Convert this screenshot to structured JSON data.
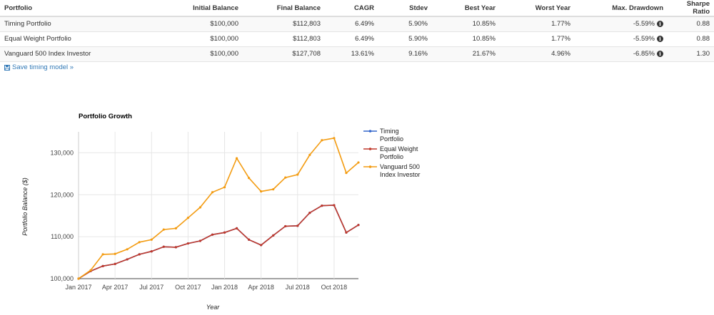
{
  "table": {
    "headers": [
      "Portfolio",
      "Initial Balance",
      "Final Balance",
      "CAGR",
      "Stdev",
      "Best Year",
      "Worst Year",
      "Max. Drawdown",
      "Sharpe Ratio"
    ],
    "rows": [
      {
        "portfolio": "Timing Portfolio",
        "initial": "$100,000",
        "final": "$112,803",
        "cagr": "6.49%",
        "stdev": "5.90%",
        "best": "10.85%",
        "worst": "1.77%",
        "drawdown": "-5.59%",
        "sharpe": "0.88"
      },
      {
        "portfolio": "Equal Weight Portfolio",
        "initial": "$100,000",
        "final": "$112,803",
        "cagr": "6.49%",
        "stdev": "5.90%",
        "best": "10.85%",
        "worst": "1.77%",
        "drawdown": "-5.59%",
        "sharpe": "0.88"
      },
      {
        "portfolio": "Vanguard 500 Index Investor",
        "initial": "$100,000",
        "final": "$127,708",
        "cagr": "13.61%",
        "stdev": "9.16%",
        "best": "21.67%",
        "worst": "4.96%",
        "drawdown": "-6.85%",
        "sharpe": "1.30"
      }
    ],
    "info_icon": "info-circle-icon"
  },
  "save_link": {
    "label": "Save timing model »",
    "icon": "floppy-disk-icon"
  },
  "chart_data": {
    "type": "line",
    "title": "Portfolio Growth",
    "xlabel": "Year",
    "ylabel": "Portfolio Balance ($)",
    "ylim": [
      100000,
      135000
    ],
    "y_ticks": [
      100000,
      110000,
      120000,
      130000
    ],
    "y_tick_labels": [
      "100,000",
      "110,000",
      "120,000",
      "130,000"
    ],
    "x_tick_labels": [
      "Jan 2017",
      "Apr 2017",
      "Jul 2017",
      "Oct 2017",
      "Jan 2018",
      "Apr 2018",
      "Jul 2018",
      "Oct 2018"
    ],
    "x": [
      "Jan 2017",
      "Feb 2017",
      "Mar 2017",
      "Apr 2017",
      "May 2017",
      "Jun 2017",
      "Jul 2017",
      "Aug 2017",
      "Sep 2017",
      "Oct 2017",
      "Nov 2017",
      "Dec 2017",
      "Jan 2018",
      "Feb 2018",
      "Mar 2018",
      "Apr 2018",
      "May 2018",
      "Jun 2018",
      "Jul 2018",
      "Aug 2018",
      "Sep 2018",
      "Oct 2018",
      "Nov 2018",
      "Dec 2018"
    ],
    "grid": true,
    "legend_position": "right",
    "series": [
      {
        "name": "Timing Portfolio",
        "color": "#3366cc",
        "values": [
          100000,
          101800,
          103000,
          103500,
          104600,
          105800,
          106500,
          107600,
          107500,
          108400,
          109000,
          110500,
          111000,
          112000,
          109300,
          108000,
          110300,
          112500,
          112600,
          115700,
          117400,
          117500,
          111000,
          112800
        ]
      },
      {
        "name": "Equal Weight Portfolio",
        "color": "#c0392b",
        "values": [
          100000,
          101800,
          103000,
          103500,
          104600,
          105800,
          106500,
          107600,
          107500,
          108400,
          109000,
          110500,
          111000,
          112000,
          109300,
          108000,
          110300,
          112500,
          112600,
          115700,
          117400,
          117500,
          111000,
          112800
        ]
      },
      {
        "name": "Vanguard 500 Index Investor",
        "color": "#f39c12",
        "values": [
          100000,
          102000,
          105800,
          105900,
          107000,
          108700,
          109300,
          111700,
          112000,
          114500,
          117000,
          120600,
          121800,
          128700,
          124000,
          120800,
          121300,
          124100,
          124800,
          129500,
          133000,
          133500,
          125200,
          127700
        ]
      }
    ]
  }
}
